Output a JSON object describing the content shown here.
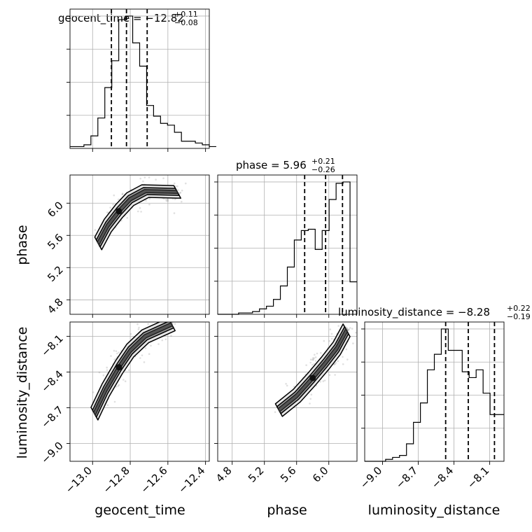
{
  "chart_data": {
    "type": "corner",
    "parameters": [
      "geocent_time",
      "phase",
      "luminosity_distance"
    ],
    "titles": [
      {
        "main": "geocent_time = −12.82",
        "plus": "+0.11",
        "minus": "−0.08"
      },
      {
        "main": "phase = 5.96",
        "plus": "+0.21",
        "minus": "−0.26"
      },
      {
        "main": "luminosity_distance = −8.28",
        "plus": "+0.22",
        "minus": "−0.19"
      }
    ],
    "axis_labels": {
      "x": [
        "geocent_time",
        "phase",
        "luminosity_distance"
      ],
      "y": [
        "phase",
        "luminosity_distance"
      ]
    },
    "ranges": {
      "geocent_time": [
        -13.12,
        -12.38
      ],
      "phase": [
        4.62,
        6.35
      ],
      "luminosity_distance": [
        -9.15,
        -7.98
      ]
    },
    "ticks": {
      "geocent_time": [
        -13.0,
        -12.8,
        -12.6,
        -12.4
      ],
      "phase": [
        4.8,
        5.2,
        5.6,
        6.0
      ],
      "luminosity_distance": [
        -9.0,
        -8.7,
        -8.4,
        -8.1
      ]
    },
    "tick_labels": {
      "geocent_time": [
        "−13.0",
        "−12.8",
        "−12.6",
        "−12.4"
      ],
      "phase": [
        "4.8",
        "5.2",
        "5.6",
        "6.0"
      ],
      "luminosity_distance": [
        "−9.0",
        "−8.7",
        "−8.4",
        "−8.1"
      ]
    },
    "quantiles": {
      "geocent_time": [
        -12.9,
        -12.82,
        -12.71
      ],
      "phase": [
        5.7,
        5.96,
        6.17
      ],
      "luminosity_distance": [
        -8.47,
        -8.28,
        -8.06
      ]
    },
    "histograms": {
      "geocent_time": {
        "edges_start": -13.12,
        "bin_width": 0.037,
        "counts": [
          1,
          1,
          2,
          7,
          17,
          34,
          49,
          72,
          74,
          59,
          46,
          24,
          18,
          14,
          13,
          9,
          4,
          4,
          3,
          2,
          1
        ]
      },
      "phase": {
        "edges_start": 4.62,
        "bin_width": 0.0865,
        "counts": [
          0,
          0,
          0,
          1,
          1,
          2,
          4,
          6,
          11,
          21,
          35,
          55,
          62,
          63,
          48,
          62,
          85,
          97,
          98,
          24
        ]
      },
      "luminosity_distance": {
        "edges_start": -9.15,
        "bin_width": 0.0585,
        "counts": [
          0,
          0,
          0,
          1,
          2,
          3,
          9,
          20,
          30,
          47,
          55,
          68,
          57,
          57,
          46,
          43,
          47,
          35,
          24,
          24
        ]
      }
    },
    "grid": true
  }
}
